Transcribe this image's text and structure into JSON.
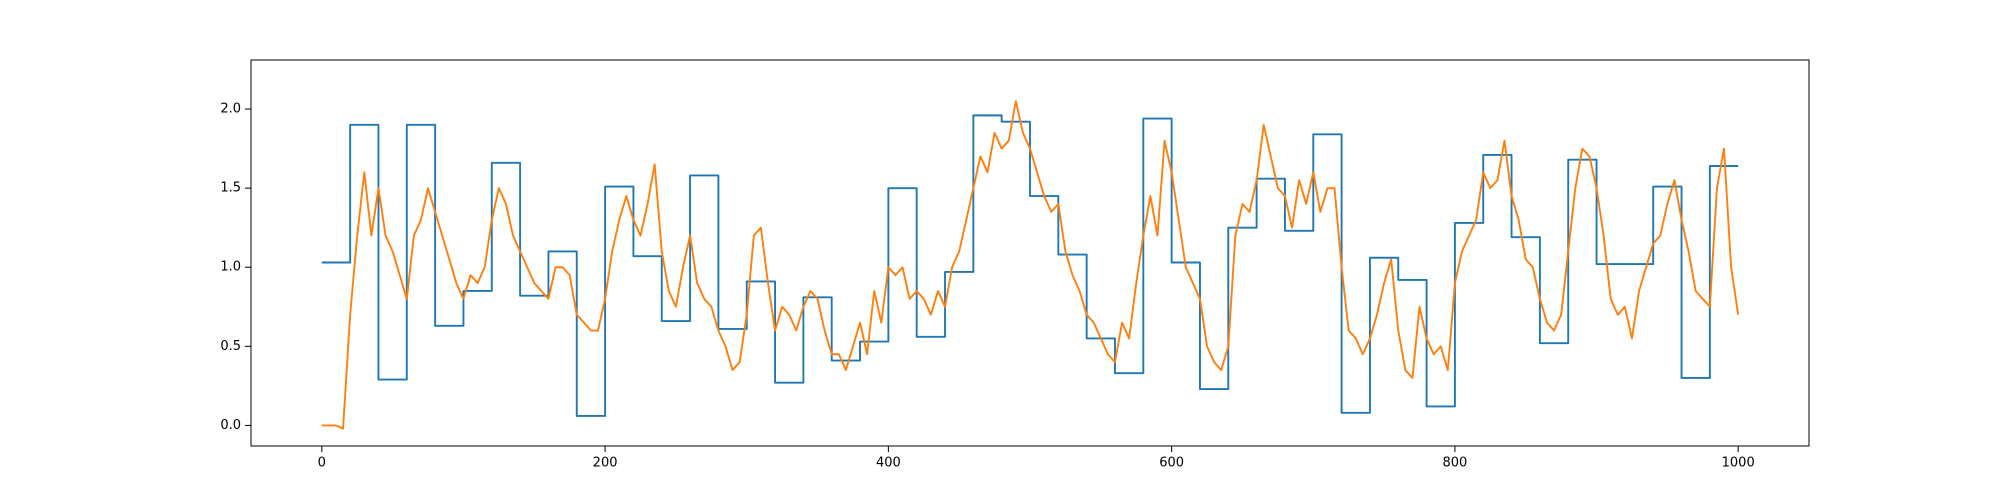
{
  "chart_data": {
    "type": "line",
    "xlim": [
      -50,
      1050
    ],
    "ylim": [
      -0.13,
      2.31
    ],
    "xticks": [
      0,
      200,
      400,
      600,
      800,
      1000
    ],
    "yticks": [
      {
        "value": 0,
        "label": "0.0"
      },
      {
        "value": 0.5,
        "label": "0.5"
      },
      {
        "value": 1,
        "label": "1.0"
      },
      {
        "value": 1.5,
        "label": "1.5"
      },
      {
        "value": 2,
        "label": "2.0"
      }
    ],
    "grid": false,
    "series": [
      {
        "color": "#1f77b4",
        "drawstyle": "steps-post",
        "x": [
          0,
          20,
          40,
          60,
          80,
          100,
          120,
          140,
          160,
          180,
          200,
          220,
          240,
          260,
          280,
          300,
          320,
          340,
          360,
          380,
          400,
          420,
          440,
          460,
          480,
          500,
          520,
          540,
          560,
          580,
          600,
          620,
          640,
          660,
          680,
          700,
          720,
          740,
          760,
          780,
          800,
          820,
          840,
          860,
          880,
          900,
          920,
          940,
          960,
          980,
          1000
        ],
        "values": [
          1.03,
          1.9,
          0.29,
          1.9,
          0.63,
          0.85,
          1.66,
          0.82,
          1.1,
          0.06,
          1.51,
          1.07,
          0.66,
          1.58,
          0.61,
          0.91,
          0.27,
          0.81,
          0.41,
          0.53,
          1.5,
          0.56,
          0.97,
          1.96,
          1.92,
          1.45,
          1.08,
          0.55,
          0.33,
          1.94,
          1.03,
          0.23,
          1.25,
          1.56,
          1.23,
          1.84,
          0.08,
          1.06,
          0.92,
          0.12,
          1.28,
          1.71,
          1.19,
          0.52,
          1.68,
          1.02,
          1.02,
          1.51,
          0.3,
          1.64,
          1.64
        ]
      },
      {
        "color": "#ff7f0e",
        "drawstyle": "default",
        "x": [
          0,
          5,
          10,
          15,
          20,
          25,
          30,
          35,
          40,
          45,
          50,
          55,
          60,
          65,
          70,
          75,
          80,
          85,
          90,
          95,
          100,
          105,
          110,
          115,
          120,
          125,
          130,
          135,
          140,
          145,
          150,
          155,
          160,
          165,
          170,
          175,
          180,
          185,
          190,
          195,
          200,
          205,
          210,
          215,
          220,
          225,
          230,
          235,
          240,
          245,
          250,
          255,
          260,
          265,
          270,
          275,
          280,
          285,
          290,
          295,
          300,
          305,
          310,
          315,
          320,
          325,
          330,
          335,
          340,
          345,
          350,
          355,
          360,
          365,
          370,
          375,
          380,
          385,
          390,
          395,
          400,
          405,
          410,
          415,
          420,
          425,
          430,
          435,
          440,
          445,
          450,
          455,
          460,
          465,
          470,
          475,
          480,
          485,
          490,
          495,
          500,
          505,
          510,
          515,
          520,
          525,
          530,
          535,
          540,
          545,
          550,
          555,
          560,
          565,
          570,
          575,
          580,
          585,
          590,
          595,
          600,
          605,
          610,
          615,
          620,
          625,
          630,
          635,
          640,
          645,
          650,
          655,
          660,
          665,
          670,
          675,
          680,
          685,
          690,
          695,
          700,
          705,
          710,
          715,
          720,
          725,
          730,
          735,
          740,
          745,
          750,
          755,
          760,
          765,
          770,
          775,
          780,
          785,
          790,
          795,
          800,
          805,
          810,
          815,
          820,
          825,
          830,
          835,
          840,
          845,
          850,
          855,
          860,
          865,
          870,
          875,
          880,
          885,
          890,
          895,
          900,
          905,
          910,
          915,
          920,
          925,
          930,
          935,
          940,
          945,
          950,
          955,
          960,
          965,
          970,
          975,
          980,
          985,
          990,
          995,
          1000
        ],
        "values": [
          0,
          0,
          0,
          -0.02,
          0.7,
          1.2,
          1.6,
          1.2,
          1.5,
          1.2,
          1.1,
          0.95,
          0.8,
          1.2,
          1.3,
          1.5,
          1.35,
          1.2,
          1.05,
          0.9,
          0.8,
          0.95,
          0.9,
          1.0,
          1.3,
          1.5,
          1.4,
          1.2,
          1.1,
          1.0,
          0.9,
          0.85,
          0.8,
          1.0,
          1.0,
          0.95,
          0.7,
          0.65,
          0.6,
          0.6,
          0.8,
          1.1,
          1.3,
          1.45,
          1.3,
          1.2,
          1.4,
          1.65,
          1.1,
          0.85,
          0.75,
          1.0,
          1.2,
          0.9,
          0.8,
          0.75,
          0.6,
          0.5,
          0.35,
          0.4,
          0.7,
          1.2,
          1.25,
          0.9,
          0.6,
          0.75,
          0.7,
          0.6,
          0.75,
          0.85,
          0.8,
          0.6,
          0.45,
          0.45,
          0.35,
          0.5,
          0.65,
          0.45,
          0.85,
          0.65,
          1.0,
          0.95,
          1.0,
          0.8,
          0.85,
          0.8,
          0.7,
          0.85,
          0.75,
          1.0,
          1.1,
          1.3,
          1.5,
          1.7,
          1.6,
          1.85,
          1.75,
          1.8,
          2.05,
          1.85,
          1.75,
          1.6,
          1.45,
          1.35,
          1.4,
          1.1,
          0.95,
          0.85,
          0.7,
          0.65,
          0.55,
          0.45,
          0.4,
          0.65,
          0.55,
          0.9,
          1.2,
          1.45,
          1.2,
          1.8,
          1.6,
          1.3,
          1.0,
          0.9,
          0.8,
          0.5,
          0.4,
          0.35,
          0.5,
          1.2,
          1.4,
          1.35,
          1.55,
          1.9,
          1.7,
          1.5,
          1.45,
          1.25,
          1.55,
          1.4,
          1.6,
          1.35,
          1.5,
          1.5,
          1.0,
          0.6,
          0.55,
          0.45,
          0.55,
          0.7,
          0.9,
          1.05,
          0.6,
          0.35,
          0.3,
          0.75,
          0.55,
          0.45,
          0.5,
          0.35,
          0.9,
          1.1,
          1.2,
          1.3,
          1.6,
          1.5,
          1.55,
          1.8,
          1.45,
          1.3,
          1.05,
          1.0,
          0.8,
          0.65,
          0.6,
          0.7,
          1.1,
          1.5,
          1.75,
          1.7,
          1.5,
          1.2,
          0.8,
          0.7,
          0.75,
          0.55,
          0.85,
          1.0,
          1.15,
          1.2,
          1.4,
          1.55,
          1.3,
          1.1,
          0.85,
          0.8,
          0.75,
          1.5,
          1.75,
          1.0,
          0.7
        ]
      }
    ]
  }
}
